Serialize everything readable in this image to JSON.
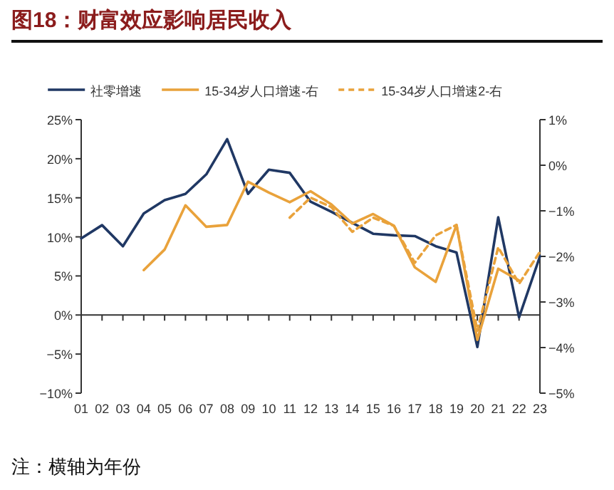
{
  "chart_data": {
    "type": "line",
    "title": "图18：财富效应影响居民收入",
    "categories": [
      "01",
      "02",
      "03",
      "04",
      "05",
      "06",
      "07",
      "08",
      "09",
      "10",
      "11",
      "12",
      "13",
      "14",
      "15",
      "16",
      "17",
      "18",
      "19",
      "20",
      "21",
      "22",
      "23"
    ],
    "series": [
      {
        "name": "社零增速",
        "color": "#203864",
        "values": [
          9.8,
          11.5,
          8.8,
          13,
          14.7,
          15.5,
          18,
          22.5,
          15.5,
          18.6,
          18.2,
          14.5,
          13.2,
          11.8,
          10.4,
          10.2,
          10.1,
          8.8,
          8.0,
          -4.1,
          12.5,
          -0.3,
          7.5
        ]
      },
      {
        "name": "15-34岁人口增速-右",
        "color": "#e9a23b",
        "axis": "y2",
        "values": [
          null,
          null,
          null,
          -2.3,
          -1.85,
          -0.88,
          -1.35,
          -1.31,
          -0.36,
          -0.6,
          -0.81,
          -0.57,
          -0.86,
          -1.28,
          -1.07,
          -1.33,
          -2.24,
          -2.56,
          -1.31,
          -3.83,
          -2.27,
          -2.53,
          null
        ]
      },
      {
        "name": "15-34岁人口增速2-右",
        "color": "#e9a23b",
        "axis": "y2",
        "line_style": "dashed",
        "values": [
          null,
          null,
          null,
          null,
          null,
          null,
          null,
          null,
          null,
          null,
          -1.15,
          -0.71,
          -0.92,
          -1.46,
          -1.15,
          -1.33,
          -2.14,
          -1.54,
          -1.31,
          -3.63,
          -1.8,
          -2.6,
          -1.9
        ]
      }
    ],
    "ylim": [
      -10,
      25
    ],
    "yticks": [
      {
        "value": -10,
        "label": "−10%"
      },
      {
        "value": -5,
        "label": "−5%"
      },
      {
        "value": 0,
        "label": "0%"
      },
      {
        "value": 5,
        "label": "5%"
      },
      {
        "value": 10,
        "label": "10%"
      },
      {
        "value": 15,
        "label": "15%"
      },
      {
        "value": 20,
        "label": "20%"
      },
      {
        "value": 25,
        "label": "25%"
      }
    ],
    "y2lim": [
      -5,
      1
    ],
    "y2ticks": [
      {
        "value": -5,
        "label": "−5%"
      },
      {
        "value": -4,
        "label": "−4%"
      },
      {
        "value": -3,
        "label": "−3%"
      },
      {
        "value": -2,
        "label": "−2%"
      },
      {
        "value": -1,
        "label": "−1%"
      },
      {
        "value": 0,
        "label": "0%"
      },
      {
        "value": 1,
        "label": "1%"
      }
    ],
    "legend": "top",
    "annotations": [
      "注：横轴为年份"
    ]
  }
}
